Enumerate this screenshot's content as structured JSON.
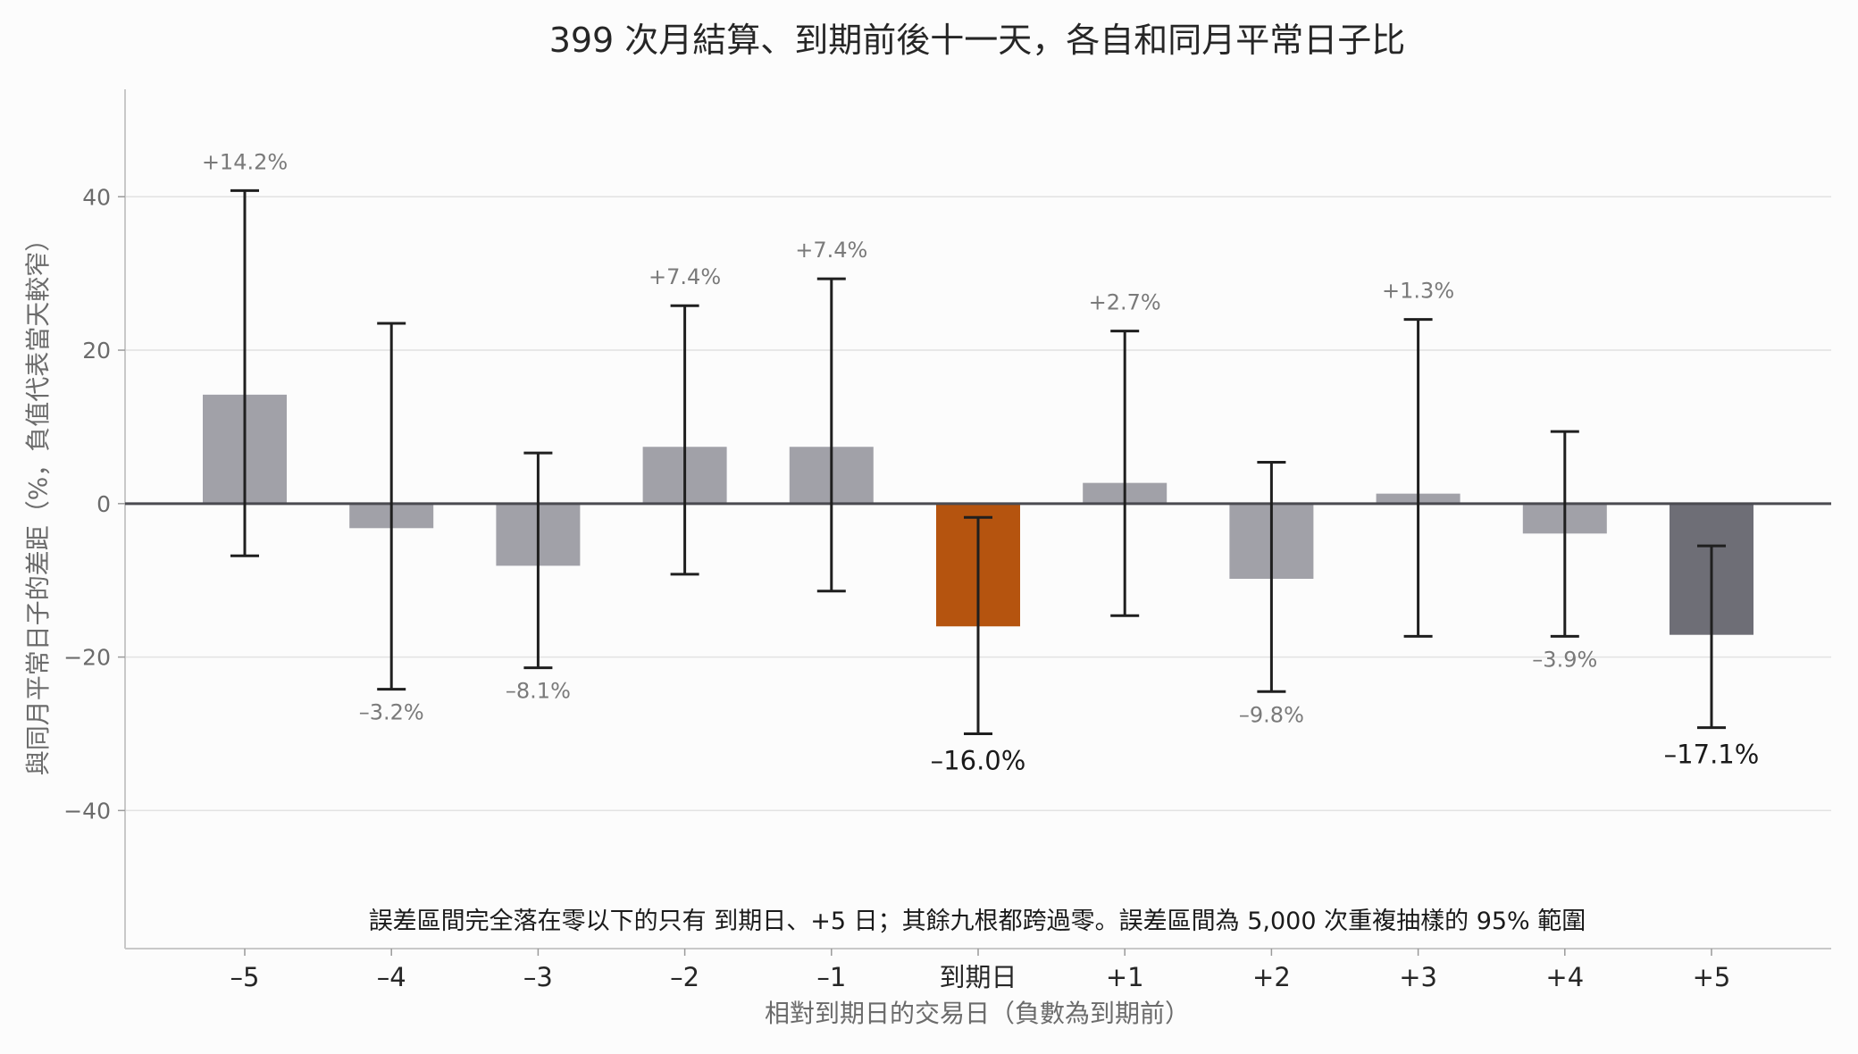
{
  "chart_data": {
    "type": "bar",
    "title": "399 次月結算、到期前後十一天，各自和同月平常日子比",
    "xlabel": "相對到期日的交易日（負數為到期前）",
    "ylabel": "與同月平常日子的差距（%，負值代表當天較窄）",
    "ylim": [
      -58,
      54
    ],
    "yticks": [
      -40,
      -20,
      0,
      20,
      40
    ],
    "grid": true,
    "categories": [
      "–5",
      "–4",
      "–3",
      "–2",
      "–1",
      "到期日",
      "+1",
      "+2",
      "+3",
      "+4",
      "+5"
    ],
    "values": [
      14.2,
      -3.2,
      -8.1,
      7.4,
      7.4,
      -16.0,
      2.7,
      -9.8,
      1.3,
      -3.9,
      -17.1
    ],
    "ci_low": [
      -6.8,
      -24.2,
      -21.4,
      -9.2,
      -11.4,
      -30.0,
      -14.6,
      -24.5,
      -17.3,
      -17.3,
      -29.2
    ],
    "ci_high": [
      40.8,
      23.5,
      6.6,
      25.8,
      29.3,
      -1.8,
      22.5,
      5.4,
      24.0,
      9.4,
      -5.5
    ],
    "value_labels": [
      "+14.2%",
      "–3.2%",
      "–8.1%",
      "+7.4%",
      "+7.4%",
      "–16.0%",
      "+2.7%",
      "–9.8%",
      "+1.3%",
      "–3.9%",
      "–17.1%"
    ],
    "highlight": [
      5,
      10
    ],
    "colors": {
      "default": "#a1a1a8",
      "expiry": "#b5540f",
      "plus5": "#6e6e76",
      "errorbar": "#1f1f1f",
      "zero_line": "#4a4a50"
    },
    "annotation": "誤差區間完全落在零以下的只有 到期日、+5 日；其餘九根都跨過零。誤差區間為 5,000 次重複抽樣的 95% 範圍"
  }
}
